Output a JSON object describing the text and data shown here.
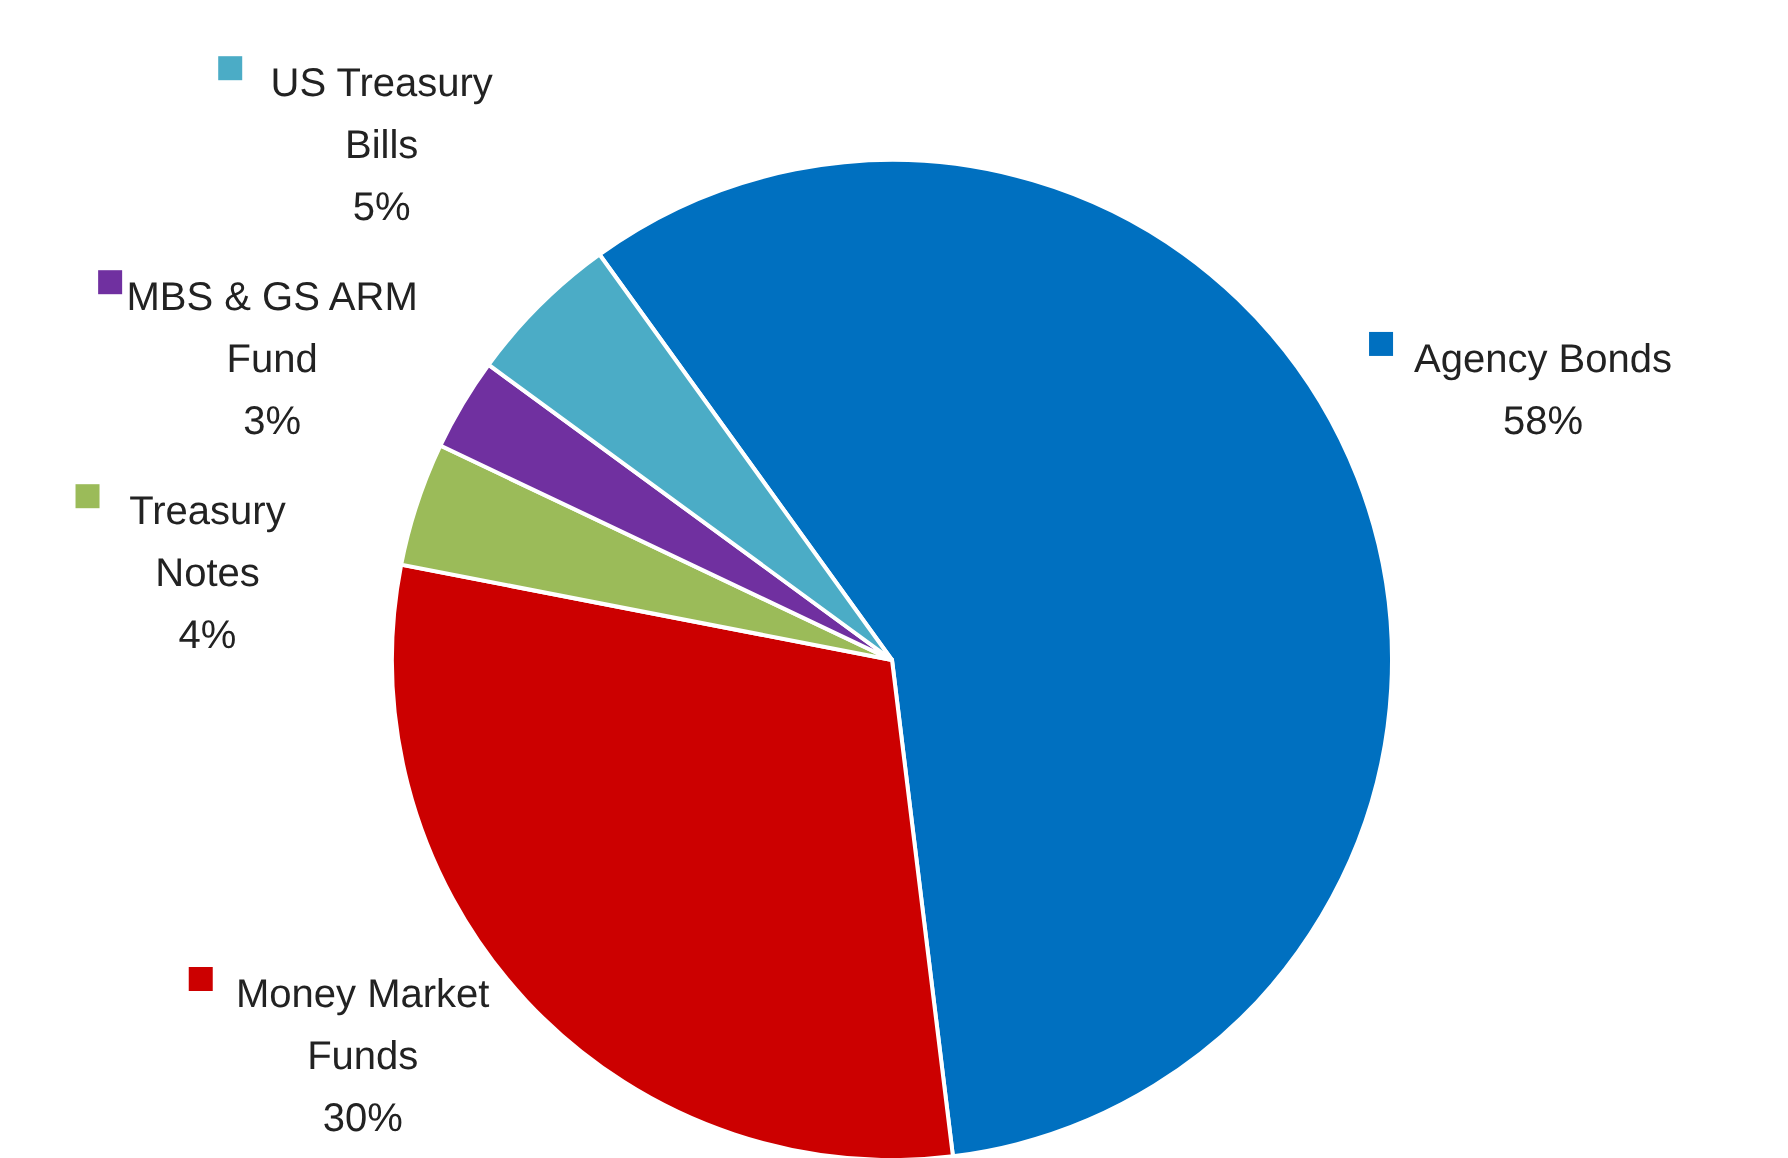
{
  "chart_data": {
    "type": "pie",
    "categories": [
      "Agency Bonds",
      "Money Market Funds",
      "Treasury Notes",
      "MBS & GS ARM Fund",
      "US Treasury Bills"
    ],
    "values": [
      58,
      30,
      4,
      3,
      5
    ],
    "value_labels": [
      "58%",
      "30%",
      "4%",
      "3%",
      "5%"
    ],
    "colors": [
      "#0070c0",
      "#cc0000",
      "#9bbb59",
      "#7030a0",
      "#4bacc6"
    ],
    "data_labels": true,
    "legend": "left"
  }
}
